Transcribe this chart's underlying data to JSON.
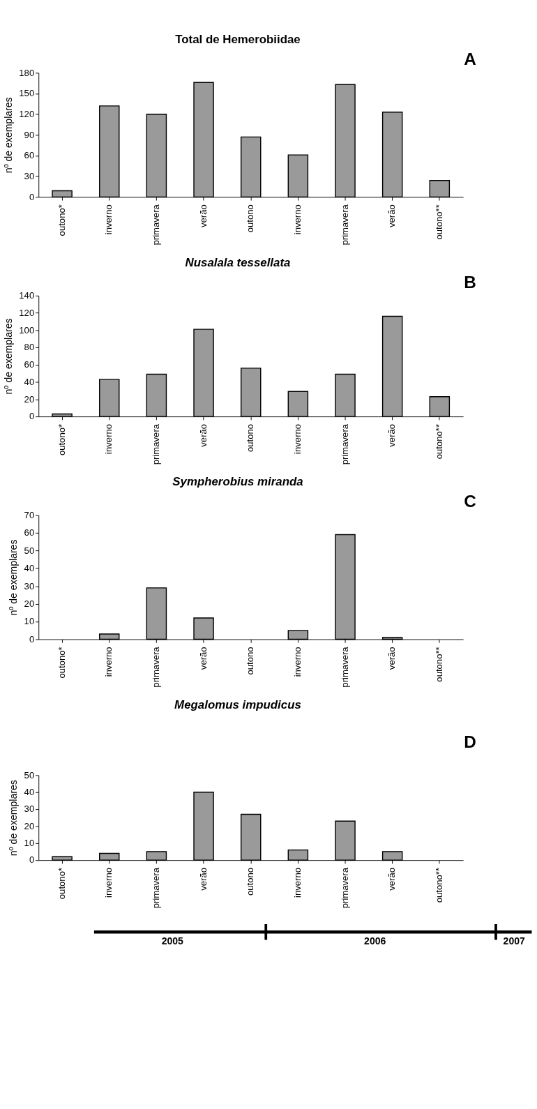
{
  "chart_data": [
    {
      "type": "bar",
      "title": "Total de Hemerobiidae",
      "ylabel": "nº de exemplares",
      "annotations": [
        "A"
      ],
      "categories": [
        "outono*",
        "inverno",
        "primavera",
        "verão",
        "outono",
        "inverno",
        "primavera",
        "verão",
        "outono**"
      ],
      "values": [
        9,
        132,
        120,
        166,
        87,
        61,
        163,
        123,
        24
      ],
      "color": "#9a9a9a",
      "ylim": [
        0,
        180
      ],
      "yticks": [
        0,
        30,
        60,
        90,
        120,
        150,
        180
      ]
    },
    {
      "type": "bar",
      "title": "Nusalala tessellata",
      "ylabel": "nº de exemplares",
      "annotations": [
        "B"
      ],
      "categories": [
        "outono*",
        "inverno",
        "primavera",
        "verão",
        "outono",
        "inverno",
        "primavera",
        "verão",
        "outono**"
      ],
      "values": [
        3,
        43,
        49,
        101,
        56,
        29,
        49,
        116,
        23
      ],
      "color": "#9a9a9a",
      "ylim": [
        0,
        140
      ],
      "yticks": [
        0,
        20,
        40,
        60,
        80,
        100,
        120,
        140
      ]
    },
    {
      "type": "bar",
      "title": "Sympherobius miranda",
      "ylabel": "nº de exemplares",
      "annotations": [
        "C"
      ],
      "categories": [
        "outono*",
        "inverno",
        "primavera",
        "verão",
        "outono",
        "inverno",
        "primavera",
        "verão",
        "outono**"
      ],
      "values": [
        0,
        3,
        29,
        12,
        0,
        5,
        59,
        1,
        0
      ],
      "color": "#9a9a9a",
      "ylim": [
        0,
        70
      ],
      "yticks": [
        0,
        10,
        20,
        30,
        40,
        50,
        60,
        70
      ]
    },
    {
      "type": "bar",
      "title": "Megalomus impudicus",
      "ylabel": "nº de exemplares",
      "annotations": [
        "D",
        "2005",
        "2006",
        "2007"
      ],
      "categories": [
        "outono*",
        "inverno",
        "primavera",
        "verão",
        "outono",
        "inverno",
        "primavera",
        "verão",
        "outono**"
      ],
      "values": [
        2,
        4,
        5,
        40,
        27,
        6,
        23,
        5,
        0
      ],
      "color": "#9a9a9a",
      "ylim": [
        0,
        50
      ],
      "yticks": [
        0,
        10,
        20,
        30,
        40,
        50
      ]
    }
  ]
}
